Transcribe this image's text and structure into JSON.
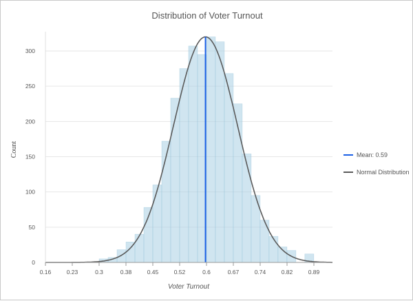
{
  "chart_data": {
    "type": "bar",
    "title": "Distribution of Voter Turnout",
    "xlabel": "Voter Turnout",
    "ylabel": "Count",
    "xlim": [
      0.16,
      0.94
    ],
    "ylim": [
      0,
      320
    ],
    "x_tick_labels": [
      "0.16",
      "0.23",
      "0.3",
      "0.38",
      "0.45",
      "0.52",
      "0.6",
      "0.67",
      "0.74",
      "0.82",
      "0.89"
    ],
    "y_ticks": [
      0,
      50,
      100,
      150,
      200,
      250,
      300
    ],
    "grid": true,
    "bin_start": 0.306,
    "bin_width": 0.0243,
    "counts": [
      5,
      7,
      18,
      29,
      40,
      78,
      110,
      172,
      233,
      275,
      307,
      295,
      320,
      313,
      268,
      225,
      154,
      95,
      60,
      37,
      22,
      17,
      0,
      12
    ],
    "mean": 0.595,
    "normal": {
      "mean": 0.595,
      "sd": 0.087,
      "peak": 320
    },
    "legend_position": "right",
    "legend": [
      {
        "label": "Mean: 0.59",
        "color": "#1a5fe6"
      },
      {
        "label": "Normal Distribution",
        "color": "#5a5a5a"
      }
    ],
    "colors": {
      "bar": "#a9cfe3",
      "bar_stroke": "#8fbfd8",
      "mean": "#1a5fe6",
      "curve": "#5a5a5a"
    }
  }
}
